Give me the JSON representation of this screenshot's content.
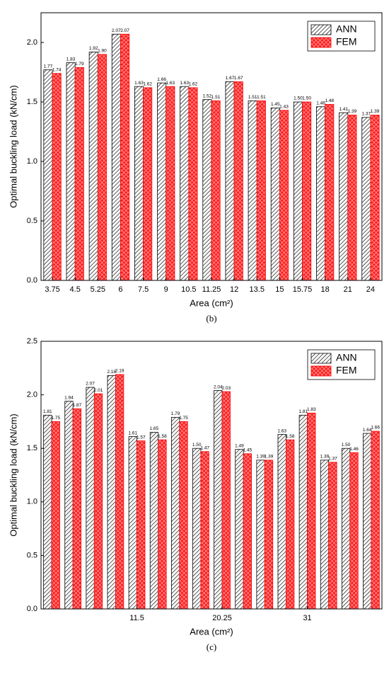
{
  "chart_data": [
    {
      "type": "bar",
      "caption": "(b)",
      "x_label": "Area (cm²)",
      "y_label": "Optimal buckling load (kN/cm)",
      "categories": [
        "3.75",
        "4.5",
        "5.25",
        "6",
        "7.5",
        "9",
        "10.5",
        "11.25",
        "12",
        "13.5",
        "15",
        "15.75",
        "18",
        "21",
        "24"
      ],
      "series": [
        {
          "name": "ANN",
          "color": "#000000",
          "values": [
            1.77,
            1.83,
            1.92,
            2.07,
            1.63,
            1.66,
            1.63,
            1.52,
            1.67,
            1.51,
            1.45,
            1.5,
            1.46,
            1.41,
            1.37
          ],
          "value_labels": [
            "1.77",
            "1.83",
            "1.92",
            "2.07",
            "1.63",
            "1.66",
            "1.63",
            "1.52",
            "1.67",
            "1.51",
            "1.45",
            "1.50",
            "1.46",
            "1.41",
            "1.37"
          ]
        },
        {
          "name": "FEM",
          "color": "#ff0000",
          "values": [
            1.74,
            1.79,
            1.9,
            2.07,
            1.62,
            1.63,
            1.62,
            1.51,
            1.67,
            1.51,
            1.43,
            1.5,
            1.48,
            1.39,
            1.39
          ],
          "value_labels": [
            "1.74",
            "1.79",
            "1.90",
            "2.07",
            "1.62",
            "1.63",
            "1.62",
            "1.51",
            "1.67",
            "1.51",
            "1.43",
            "1.50",
            "1.48",
            "1.39",
            "1.39"
          ]
        }
      ],
      "ylim": [
        0,
        2.25
      ],
      "yticks": [
        {
          "value": 0,
          "label": "0.0"
        },
        0.5,
        {
          "value": 1,
          "label": "1.0"
        },
        1.5,
        {
          "value": 2,
          "label": "2.0"
        }
      ],
      "legend": "upper right"
    },
    {
      "type": "bar",
      "caption": "(c)",
      "x_label": "Area (cm²)",
      "y_label": "Optimal buckling load (kN/cm)",
      "categories": [
        null,
        null,
        null,
        null,
        "11.5",
        null,
        null,
        null,
        "20.25",
        null,
        null,
        null,
        "31",
        null,
        null,
        null
      ],
      "series": [
        {
          "name": "ANN",
          "color": "#000000",
          "values": [
            1.81,
            1.94,
            2.07,
            2.18,
            1.61,
            1.65,
            1.79,
            1.5,
            2.04,
            1.49,
            1.39,
            1.63,
            1.81,
            1.39,
            1.5,
            1.64
          ],
          "value_labels": [
            "1.81",
            "1.94",
            "2.07",
            "2.18",
            "1.61",
            "1.65",
            "1.79",
            "1.50",
            "2.04",
            "1.49",
            "1.39",
            "1.63",
            "1.81",
            "1.39",
            "1.50",
            "1.64"
          ]
        },
        {
          "name": "FEM",
          "color": "#ff0000",
          "values": [
            1.75,
            1.87,
            2.01,
            2.19,
            1.57,
            1.58,
            1.75,
            1.47,
            2.03,
            1.45,
            1.39,
            1.58,
            1.83,
            1.37,
            1.46,
            1.66
          ],
          "value_labels": [
            "1.75",
            "1.87",
            "2.01",
            "2.19",
            "1.57",
            "1.58",
            "1.75",
            "1.47",
            "2.03",
            "1.45",
            "1.39",
            "1.58",
            "1.83",
            "1.37",
            "1.46",
            "1.66"
          ]
        }
      ],
      "ylim": [
        0,
        2.5
      ],
      "yticks": [
        {
          "value": 0,
          "label": "0.0"
        },
        0.5,
        {
          "value": 1,
          "label": "1.0"
        },
        1.5,
        {
          "value": 2,
          "label": "2.0"
        },
        2.5
      ],
      "legend": "upper right"
    }
  ]
}
